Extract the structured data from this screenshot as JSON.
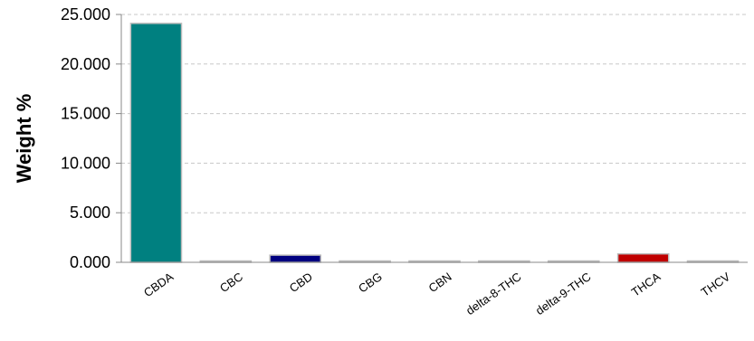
{
  "chart_data": {
    "type": "bar",
    "title": "",
    "xlabel": "",
    "ylabel": "Weight %",
    "ylim": [
      0,
      25
    ],
    "yticks": [
      "0.000",
      "5.000",
      "10.000",
      "15.000",
      "20.000",
      "25.000"
    ],
    "grid": true,
    "categories": [
      "CBDA",
      "CBC",
      "CBD",
      "CBG",
      "CBN",
      "delta-8-THC",
      "delta-9-THC",
      "THCA",
      "THCV"
    ],
    "values": [
      24.1,
      0.05,
      0.72,
      0.03,
      0.0,
      0.0,
      0.05,
      0.85,
      0.0
    ],
    "colors": [
      "#008080",
      "#008080",
      "#000080",
      "#008080",
      "#008080",
      "#008080",
      "#008080",
      "#c00000",
      "#008080"
    ]
  }
}
